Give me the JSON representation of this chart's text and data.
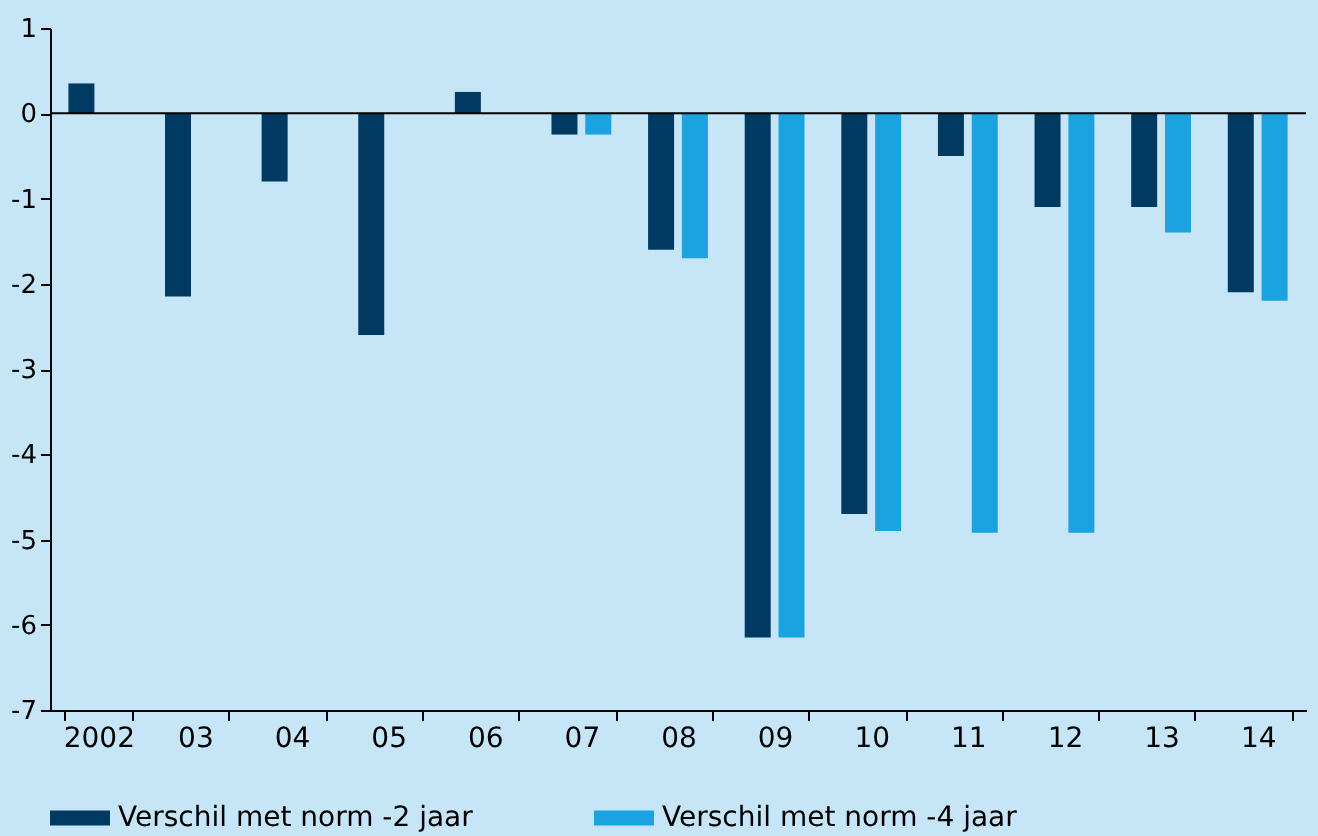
{
  "chart_data": {
    "type": "bar",
    "categories": [
      "2002",
      "03",
      "04",
      "05",
      "06",
      "07",
      "08",
      "09",
      "10",
      "11",
      "12",
      "13",
      "14"
    ],
    "series": [
      {
        "name": "Verschil met norm -2 jaar",
        "color": "#003a63",
        "values": [
          0.35,
          -2.15,
          -0.8,
          -2.6,
          0.25,
          -0.25,
          -1.6,
          -6.15,
          -4.7,
          -0.5,
          -1.1,
          -1.1,
          -2.1
        ]
      },
      {
        "name": "Verschil met norm -4 jaar",
        "color": "#1aa3e0",
        "values": [
          null,
          null,
          null,
          null,
          null,
          -0.25,
          -1.7,
          -6.15,
          -4.9,
          -4.92,
          -4.92,
          -1.4,
          -2.2
        ]
      }
    ],
    "ylim": [
      -7,
      1
    ],
    "yticks": [
      -7,
      -6,
      -5,
      -4,
      -3,
      -2,
      -1,
      0,
      1
    ],
    "ref_lines": [
      {
        "axis": "y",
        "value": 0,
        "color": "#000000"
      }
    ],
    "grid": false,
    "legend": "bottom"
  }
}
